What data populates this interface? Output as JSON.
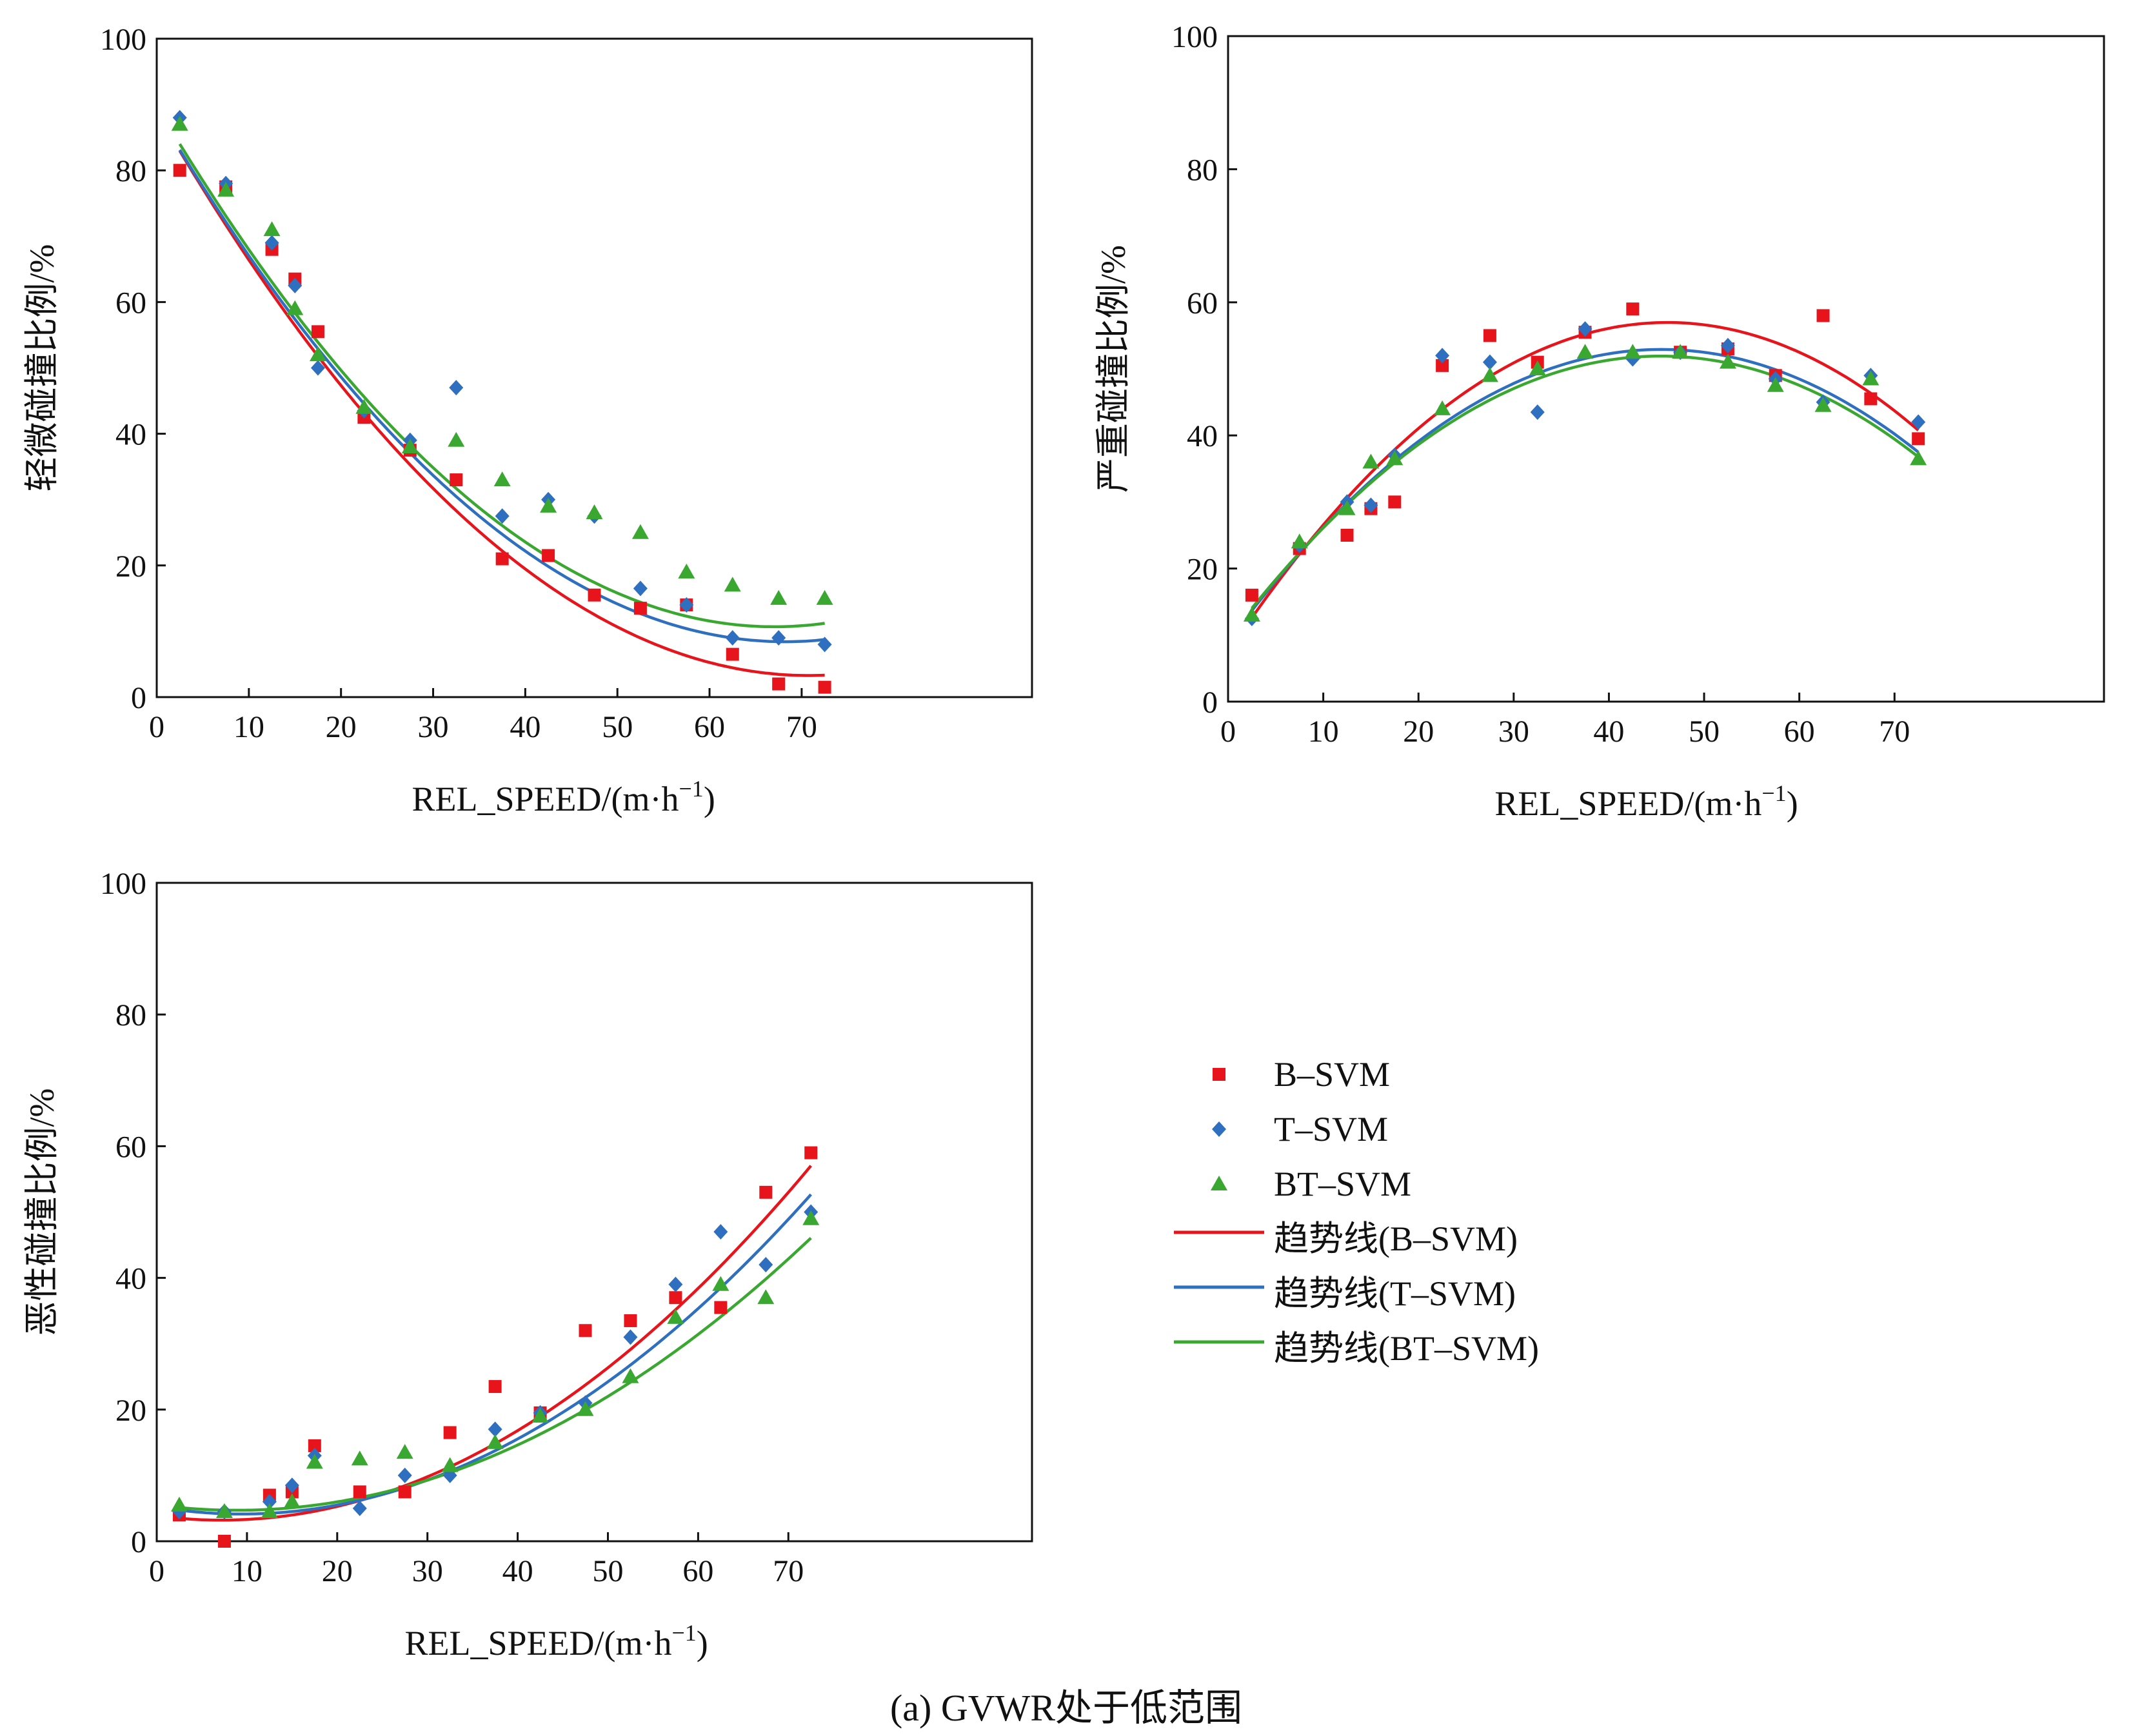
{
  "figure": {
    "caption": "(a) GVWR处于低范围"
  },
  "colors": {
    "B-SVM": "#e8141c",
    "T-SVM": "#2f6fbf",
    "BT-SVM": "#3aa830"
  },
  "legend": {
    "items": [
      {
        "label": "B–SVM",
        "kind": "marker",
        "shape": "square",
        "series": "B-SVM"
      },
      {
        "label": "T–SVM",
        "kind": "marker",
        "shape": "diamond",
        "series": "T-SVM"
      },
      {
        "label": "BT–SVM",
        "kind": "marker",
        "shape": "triangle",
        "series": "BT-SVM"
      },
      {
        "label": "趋势线(B–SVM)",
        "kind": "line",
        "series": "B-SVM"
      },
      {
        "label": "趋势线(T–SVM)",
        "kind": "line",
        "series": "T-SVM"
      },
      {
        "label": "趋势线(BT–SVM)",
        "kind": "line",
        "series": "BT-SVM"
      }
    ]
  },
  "chart_data": [
    {
      "type": "scatter",
      "ylabel": "轻微碰撞比例/%",
      "xlabel": "REL_SPEED/(m·h",
      "xlabel_sup": "−1",
      "xlabel_end": ")",
      "xlim": [
        0,
        95
      ],
      "ylim": [
        0,
        100
      ],
      "xticks": [
        0,
        10,
        20,
        30,
        40,
        50,
        60,
        70
      ],
      "yticks": [
        0,
        20,
        40,
        60,
        80,
        100
      ],
      "grid": false,
      "series": [
        {
          "key": "B-SVM",
          "marker": "square",
          "x": [
            2.5,
            7.5,
            12.5,
            15,
            17.5,
            22.5,
            27.5,
            32.5,
            37.5,
            42.5,
            47.5,
            52.5,
            57.5,
            62.5,
            67.5,
            72.5
          ],
          "y": [
            80,
            77.5,
            68,
            63.5,
            55.5,
            42.5,
            37.5,
            33,
            21,
            21.5,
            15.5,
            13.5,
            14,
            6.5,
            2,
            1.5
          ]
        },
        {
          "key": "T-SVM",
          "marker": "diamond",
          "x": [
            2.5,
            7.5,
            12.5,
            15,
            17.5,
            22.5,
            27.5,
            32.5,
            37.5,
            42.5,
            47.5,
            52.5,
            57.5,
            62.5,
            67.5,
            72.5
          ],
          "y": [
            88,
            78,
            69,
            62.5,
            50,
            43.5,
            39,
            47,
            27.5,
            30,
            27.5,
            16.5,
            14,
            9,
            9,
            8
          ]
        },
        {
          "key": "BT-SVM",
          "marker": "triangle",
          "x": [
            2.5,
            7.5,
            12.5,
            15,
            17.5,
            22.5,
            27.5,
            32.5,
            37.5,
            42.5,
            47.5,
            52.5,
            57.5,
            62.5,
            67.5,
            72.5
          ],
          "y": [
            87,
            77,
            71,
            59,
            52,
            44,
            38,
            39,
            33,
            29,
            28,
            25,
            19,
            17,
            15,
            15
          ]
        }
      ],
      "trendlines": [
        {
          "key": "B-SVM",
          "coef": [
            88.9,
            -2.42,
            0.0171
          ]
        },
        {
          "key": "T-SVM",
          "coef": [
            88.9,
            -2.36,
            0.0173
          ]
        },
        {
          "key": "BT-SVM",
          "coef": [
            89.8,
            -2.36,
            0.0176
          ]
        }
      ]
    },
    {
      "type": "scatter",
      "ylabel": "严重碰撞比例/%",
      "xlabel": "REL_SPEED/(m·h",
      "xlabel_sup": "−1",
      "xlabel_end": ")",
      "xlim": [
        0,
        92
      ],
      "ylim": [
        0,
        100
      ],
      "xticks": [
        0,
        10,
        20,
        30,
        40,
        50,
        60,
        70
      ],
      "yticks": [
        0,
        20,
        40,
        60,
        80,
        100
      ],
      "grid": false,
      "series": [
        {
          "key": "B-SVM",
          "marker": "square",
          "x": [
            2.5,
            7.5,
            12.5,
            15,
            17.5,
            22.5,
            27.5,
            32.5,
            37.5,
            42.5,
            47.5,
            52.5,
            57.5,
            62.5,
            67.5,
            72.5
          ],
          "y": [
            16,
            23,
            25,
            29,
            30,
            50.5,
            55,
            51,
            55.5,
            59,
            52.5,
            53,
            49,
            58,
            45.5,
            39.5
          ]
        },
        {
          "key": "T-SVM",
          "marker": "diamond",
          "x": [
            2.5,
            7.5,
            12.5,
            15,
            17.5,
            22.5,
            27.5,
            32.5,
            37.5,
            42.5,
            47.5,
            52.5,
            57.5,
            62.5,
            67.5,
            72.5
          ],
          "y": [
            12.5,
            23.5,
            30,
            29.5,
            37,
            52,
            51,
            43.5,
            56,
            51.5,
            52.5,
            53.5,
            48.5,
            45,
            49,
            42
          ]
        },
        {
          "key": "BT-SVM",
          "marker": "triangle",
          "x": [
            2.5,
            7.5,
            12.5,
            15,
            17.5,
            22.5,
            27.5,
            32.5,
            37.5,
            42.5,
            47.5,
            52.5,
            57.5,
            62.5,
            67.5,
            72.5
          ],
          "y": [
            13,
            24,
            29,
            36,
            36.5,
            44,
            49,
            50,
            52.5,
            52.5,
            52.5,
            51,
            47.5,
            44.5,
            48.5,
            36.5
          ]
        }
      ],
      "trendlines": [
        {
          "key": "B-SVM",
          "coef": [
            7.37,
            2.15,
            -0.0233
          ]
        },
        {
          "key": "T-SVM",
          "coef": [
            8.99,
            1.93,
            -0.0212
          ]
        },
        {
          "key": "BT-SVM",
          "coef": [
            9.48,
            1.87,
            -0.0206
          ]
        }
      ]
    },
    {
      "type": "scatter",
      "ylabel": "恶性碰撞比例/%",
      "xlabel": "REL_SPEED/(m·h",
      "xlabel_sup": "−1",
      "xlabel_end": ")",
      "xlim": [
        0,
        97
      ],
      "ylim": [
        0,
        100
      ],
      "xticks": [
        0,
        10,
        20,
        30,
        40,
        50,
        60,
        70
      ],
      "yticks": [
        0,
        20,
        40,
        60,
        80,
        100
      ],
      "grid": false,
      "series": [
        {
          "key": "B-SVM",
          "marker": "square",
          "x": [
            2.5,
            7.5,
            12.5,
            15,
            17.5,
            22.5,
            27.5,
            32.5,
            37.5,
            42.5,
            47.5,
            52.5,
            57.5,
            62.5,
            67.5,
            72.5
          ],
          "y": [
            4,
            0,
            7,
            7.5,
            14.5,
            7.5,
            7.5,
            16.5,
            23.5,
            19.5,
            32,
            33.5,
            37,
            35.5,
            53,
            59
          ]
        },
        {
          "key": "T-SVM",
          "marker": "diamond",
          "x": [
            2.5,
            7.5,
            12.5,
            15,
            17.5,
            22.5,
            27.5,
            32.5,
            37.5,
            42.5,
            47.5,
            52.5,
            57.5,
            62.5,
            67.5,
            72.5
          ],
          "y": [
            4.5,
            4.5,
            6,
            8.5,
            13,
            5,
            10,
            10,
            17,
            19.5,
            21,
            31,
            39,
            47,
            42,
            50
          ]
        },
        {
          "key": "BT-SVM",
          "marker": "triangle",
          "x": [
            2.5,
            7.5,
            12.5,
            15,
            17.5,
            22.5,
            27.5,
            32.5,
            37.5,
            42.5,
            47.5,
            52.5,
            57.5,
            62.5,
            67.5,
            72.5
          ],
          "y": [
            5.5,
            4.5,
            4.5,
            6,
            12,
            12.5,
            13.5,
            11.5,
            15,
            19,
            20,
            25,
            34,
            39,
            37,
            49
          ]
        }
      ],
      "trendlines": [
        {
          "key": "B-SVM",
          "coef": [
            3.85,
            -0.18,
            0.0126
          ]
        },
        {
          "key": "T-SVM",
          "coef": [
            5.22,
            -0.23,
            0.0122
          ]
        },
        {
          "key": "BT-SVM",
          "coef": [
            5.5,
            -0.18,
            0.0102
          ]
        }
      ]
    }
  ]
}
